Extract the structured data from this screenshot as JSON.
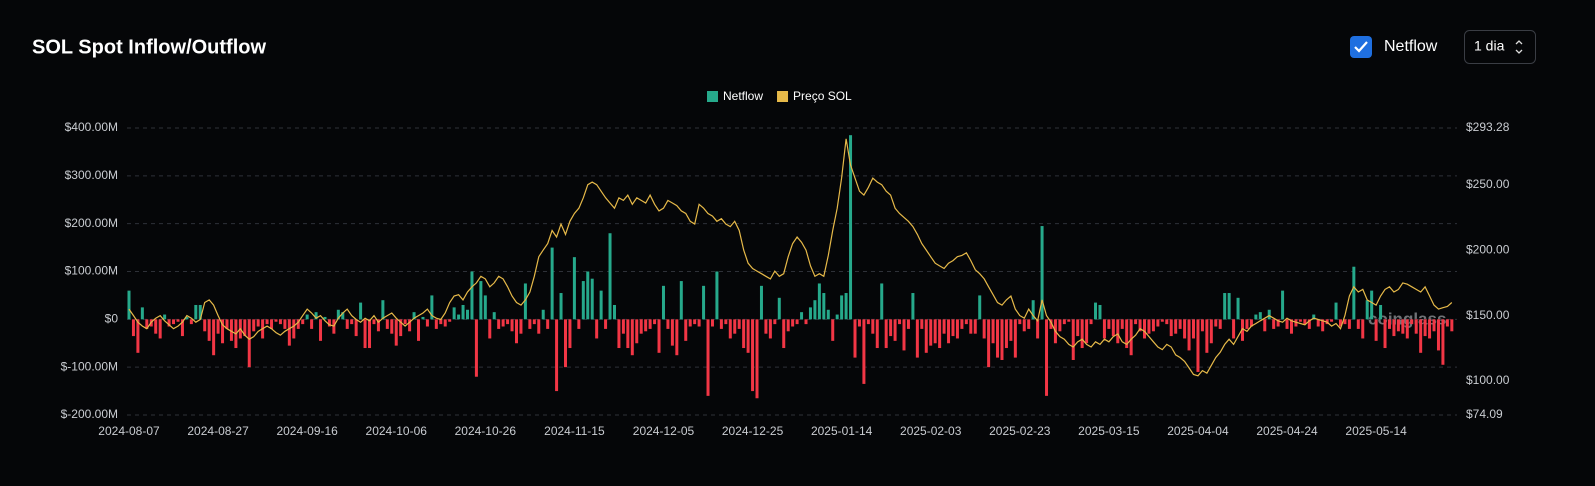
{
  "chart_data": {
    "type": "bar",
    "title": "SOL Spot Inflow/Outflow",
    "controls": {
      "checkbox_label": "Netflow",
      "interval": "1 dia"
    },
    "watermark": "coinglass",
    "categories": [
      "2024-08-07",
      null,
      null,
      null,
      null,
      null,
      null,
      null,
      null,
      null,
      null,
      null,
      null,
      null,
      null,
      null,
      null,
      null,
      null,
      null,
      "2024-08-27",
      null,
      null,
      null,
      null,
      null,
      null,
      null,
      null,
      null,
      null,
      null,
      null,
      null,
      null,
      null,
      null,
      null,
      null,
      null,
      "2024-09-16",
      null,
      null,
      null,
      null,
      null,
      null,
      null,
      null,
      null,
      null,
      null,
      null,
      null,
      null,
      null,
      null,
      null,
      null,
      null,
      "2024-10-06",
      null,
      null,
      null,
      null,
      null,
      null,
      null,
      null,
      null,
      null,
      null,
      null,
      null,
      null,
      null,
      null,
      null,
      null,
      null,
      "2024-10-26",
      null,
      null,
      null,
      null,
      null,
      null,
      null,
      null,
      null,
      null,
      null,
      null,
      null,
      null,
      null,
      null,
      null,
      null,
      null,
      "2024-11-15",
      null,
      null,
      null,
      null,
      null,
      null,
      null,
      null,
      null,
      null,
      null,
      null,
      null,
      null,
      null,
      null,
      null,
      null,
      null,
      "2024-12-05",
      null,
      null,
      null,
      null,
      null,
      null,
      null,
      null,
      null,
      null,
      null,
      null,
      null,
      null,
      null,
      null,
      null,
      null,
      null,
      "2024-12-25",
      null,
      null,
      null,
      null,
      null,
      null,
      null,
      null,
      null,
      null,
      null,
      null,
      null,
      null,
      null,
      null,
      null,
      null,
      null,
      "2025-01-14",
      null,
      null,
      null,
      null,
      null,
      null,
      null,
      null,
      null,
      null,
      null,
      null,
      null,
      null,
      null,
      null,
      null,
      null,
      null,
      "2025-02-03",
      null,
      null,
      null,
      null,
      null,
      null,
      null,
      null,
      null,
      null,
      null,
      null,
      null,
      null,
      null,
      null,
      null,
      null,
      null,
      "2025-02-23",
      null,
      null,
      null,
      null,
      null,
      null,
      null,
      null,
      null,
      null,
      null,
      null,
      null,
      null,
      null,
      null,
      null,
      null,
      null,
      "2025-03-15",
      null,
      null,
      null,
      null,
      null,
      null,
      null,
      null,
      null,
      null,
      null,
      null,
      null,
      null,
      null,
      null,
      null,
      null,
      null,
      "2025-04-04",
      null,
      null,
      null,
      null,
      null,
      null,
      null,
      null,
      null,
      null,
      null,
      null,
      null,
      null,
      null,
      null,
      null,
      null,
      null,
      "2025-04-24",
      null,
      null,
      null,
      null,
      null,
      null,
      null,
      null,
      null,
      null,
      null,
      null,
      null,
      null,
      null,
      null,
      null,
      null,
      null,
      "2025-05-14",
      null,
      null,
      null,
      null,
      null,
      null,
      null,
      null,
      null,
      null,
      null,
      null,
      null,
      null,
      null,
      null,
      null
    ],
    "series": [
      {
        "name": "Netflow",
        "type": "bar",
        "color": "#26a98b",
        "negative_color": "#f23645",
        "values": [
          60,
          -35,
          -70,
          25,
          -20,
          -15,
          -30,
          -40,
          10,
          -15,
          -10,
          -5,
          -35,
          5,
          -10,
          30,
          30,
          -25,
          -45,
          -75,
          -30,
          -50,
          -20,
          -45,
          -60,
          -40,
          -35,
          -100,
          -25,
          -15,
          -40,
          -10,
          -20,
          -5,
          -10,
          -20,
          -55,
          -40,
          -20,
          -10,
          10,
          -20,
          15,
          -45,
          5,
          -15,
          -30,
          20,
          15,
          -20,
          -10,
          -35,
          35,
          -60,
          -60,
          -10,
          -25,
          40,
          -20,
          -30,
          -55,
          -35,
          -10,
          -25,
          15,
          -45,
          5,
          -15,
          50,
          -20,
          -10,
          -15,
          -5,
          25,
          10,
          30,
          20,
          100,
          -120,
          80,
          50,
          -40,
          15,
          -20,
          -15,
          -10,
          -25,
          -50,
          -30,
          75,
          -20,
          -10,
          -30,
          20,
          -20,
          150,
          -150,
          55,
          -100,
          -60,
          130,
          -20,
          80,
          100,
          85,
          -40,
          60,
          -20,
          180,
          30,
          -60,
          -30,
          -60,
          -75,
          -50,
          -30,
          -25,
          -20,
          -10,
          -70,
          70,
          -20,
          -55,
          -75,
          80,
          -45,
          -15,
          -10,
          -15,
          70,
          -160,
          -15,
          100,
          -20,
          -10,
          -40,
          -30,
          -20,
          -60,
          -70,
          -150,
          -165,
          70,
          -30,
          -40,
          -10,
          45,
          -60,
          -25,
          -15,
          -10,
          15,
          -10,
          25,
          40,
          75,
          55,
          20,
          -45,
          10,
          50,
          55,
          385,
          -80,
          -15,
          -135,
          -10,
          -30,
          -60,
          75,
          -60,
          -35,
          -45,
          -10,
          -65,
          -20,
          55,
          -80,
          -20,
          -70,
          -55,
          -50,
          -60,
          -30,
          -50,
          -35,
          -40,
          -20,
          -10,
          -30,
          -30,
          50,
          -40,
          -100,
          -50,
          -80,
          -85,
          -60,
          -45,
          -80,
          -10,
          -25,
          -20,
          40,
          -40,
          195,
          -160,
          -20,
          -50,
          -25,
          -10,
          -5,
          -85,
          -35,
          -60,
          -50,
          -10,
          35,
          30,
          -40,
          -20,
          -35,
          -50,
          -20,
          -60,
          -75,
          -10,
          -25,
          -40,
          -30,
          -25,
          -15,
          -5,
          -10,
          -35,
          -30,
          -20,
          -40,
          -65,
          -40,
          -110,
          -25,
          -70,
          -50,
          -15,
          -20,
          55,
          55,
          -40,
          45,
          -45,
          -20,
          -15,
          10,
          15,
          -25,
          20,
          -20,
          -15,
          60,
          -20,
          -30,
          -15,
          -5,
          -10,
          -20,
          10,
          -15,
          -25,
          -10,
          -5,
          35,
          -15,
          -10,
          -20,
          110,
          -20,
          -40,
          40,
          60,
          -45,
          30,
          -60,
          -20,
          -35,
          -25,
          -30,
          -40,
          -10,
          -30,
          -70,
          -35,
          -40,
          -25,
          -65,
          -95,
          -15,
          -25
        ]
      },
      {
        "name": "Preço SOL",
        "type": "line",
        "axis": "y2",
        "color": "#e6b949",
        "values": [
          155,
          150,
          145,
          142,
          140,
          145,
          148,
          150,
          146,
          143,
          140,
          142,
          145,
          150,
          148,
          145,
          147,
          160,
          162,
          158,
          150,
          143,
          140,
          138,
          136,
          140,
          135,
          132,
          134,
          138,
          140,
          142,
          140,
          137,
          135,
          138,
          140,
          142,
          145,
          150,
          155,
          152,
          148,
          150,
          146,
          143,
          142,
          148,
          152,
          155,
          150,
          147,
          145,
          148,
          146,
          150,
          145,
          148,
          150,
          152,
          148,
          145,
          142,
          145,
          148,
          150,
          152,
          155,
          150,
          148,
          147,
          152,
          160,
          165,
          166,
          162,
          168,
          172,
          175,
          180,
          178,
          172,
          175,
          180,
          178,
          172,
          165,
          160,
          158,
          162,
          168,
          180,
          195,
          200,
          205,
          215,
          210,
          220,
          212,
          222,
          228,
          232,
          240,
          250,
          252,
          250,
          245,
          240,
          236,
          232,
          240,
          238,
          242,
          235,
          240,
          238,
          236,
          242,
          235,
          230,
          232,
          238,
          236,
          234,
          230,
          228,
          222,
          220,
          235,
          232,
          228,
          226,
          222,
          224,
          220,
          218,
          222,
          215,
          200,
          190,
          186,
          184,
          182,
          180,
          178,
          184,
          180,
          182,
          195,
          205,
          210,
          206,
          200,
          188,
          180,
          182,
          180,
          196,
          215,
          232,
          255,
          285,
          265,
          255,
          245,
          242,
          248,
          255,
          252,
          250,
          245,
          242,
          232,
          228,
          225,
          222,
          218,
          212,
          205,
          200,
          195,
          190,
          188,
          186,
          190,
          192,
          195,
          196,
          198,
          192,
          185,
          182,
          178,
          172,
          166,
          160,
          158,
          162,
          165,
          155,
          150,
          148,
          155,
          150,
          146,
          162,
          150,
          145,
          138,
          134,
          132,
          128,
          126,
          130,
          132,
          128,
          126,
          130,
          128,
          132,
          130,
          134,
          136,
          130,
          128,
          132,
          135,
          140,
          138,
          134,
          130,
          126,
          124,
          128,
          126,
          120,
          118,
          115,
          110,
          105,
          104,
          108,
          106,
          112,
          118,
          122,
          128,
          132,
          128,
          134,
          140,
          138,
          142,
          144,
          146,
          148,
          150,
          148,
          146,
          145,
          148,
          146,
          145,
          144,
          143,
          146,
          148,
          147,
          146,
          145,
          142,
          144,
          140,
          150,
          165,
          172,
          168,
          170,
          162,
          160,
          158,
          165,
          170,
          172,
          168,
          170,
          175,
          174,
          172,
          170,
          168,
          172,
          165,
          158,
          155,
          156,
          157,
          160
        ]
      }
    ],
    "ylim": [
      -200,
      400
    ],
    "yticks": [
      {
        "value": -200,
        "label": "$-200.00M"
      },
      {
        "value": -100,
        "label": "$-100.00M"
      },
      {
        "value": 0,
        "label": "$0"
      },
      {
        "value": 100,
        "label": "$100.00M"
      },
      {
        "value": 200,
        "label": "$200.00M"
      },
      {
        "value": 300,
        "label": "$300.00M"
      },
      {
        "value": 400,
        "label": "$400.00M"
      }
    ],
    "y2lim": [
      74.09,
      293.28
    ],
    "y2ticks": [
      {
        "value": 74.09,
        "label": "$74.09"
      },
      {
        "value": 100,
        "label": "$100.00"
      },
      {
        "value": 150,
        "label": "$150.00"
      },
      {
        "value": 200,
        "label": "$200.00"
      },
      {
        "value": 250,
        "label": "$250.00"
      },
      {
        "value": 293.28,
        "label": "$293.28"
      }
    ],
    "grid": true,
    "legend": "top"
  }
}
